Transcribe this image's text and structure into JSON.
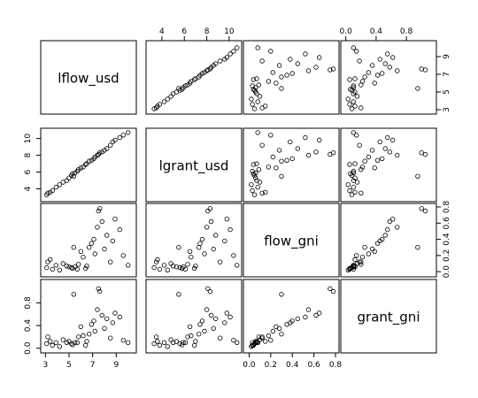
{
  "chart_data": {
    "type": "scatter",
    "variables": [
      {
        "name": "lflow_usd",
        "range": [
          2.9,
          10.4
        ],
        "ticks": [
          3,
          5,
          7,
          9
        ]
      },
      {
        "name": "lgrant_usd",
        "range": [
          2.9,
          10.8
        ],
        "ticks": [
          4,
          6,
          8,
          10
        ]
      },
      {
        "name": "flow_gni",
        "range": [
          -0.02,
          0.8
        ],
        "ticks": [
          0.0,
          0.2,
          0.4,
          0.6,
          0.8
        ]
      },
      {
        "name": "grant_gni",
        "range": [
          -0.02,
          1.15
        ],
        "ticks": [
          0.0,
          0.4,
          0.8
        ]
      }
    ],
    "tick_labels": {
      "top_lgrant_usd": [
        "4",
        "6",
        "8",
        "10"
      ],
      "top_grant_gni": [
        "0.0",
        "0.4",
        "0.8"
      ],
      "right_lflow_usd": [
        "3",
        "5",
        "7",
        "9"
      ],
      "right_flow_gni": [
        "0.0",
        "0.2",
        "0.4",
        "0.6",
        "0.8"
      ],
      "bottom_lflow_usd": [
        "3",
        "5",
        "7",
        "9"
      ],
      "bottom_flow_gni": [
        "0.0",
        "0.2",
        "0.4",
        "0.6",
        "0.8"
      ],
      "left_lgrant_usd": [
        "4",
        "6",
        "8",
        "10"
      ],
      "left_grant_gni": [
        "0.0",
        "0.4",
        "0.8"
      ]
    },
    "observations": [
      [
        3.1,
        3.3,
        0.05,
        0.08
      ],
      [
        3.2,
        3.5,
        0.12,
        0.2
      ],
      [
        3.4,
        3.6,
        0.15,
        0.12
      ],
      [
        3.6,
        3.8,
        0.03,
        0.05
      ],
      [
        3.9,
        4.2,
        0.08,
        0.1
      ],
      [
        4.2,
        4.5,
        0.02,
        0.03
      ],
      [
        4.5,
        4.8,
        0.1,
        0.15
      ],
      [
        4.8,
        5.0,
        0.07,
        0.1
      ],
      [
        5.0,
        5.3,
        0.06,
        0.12
      ],
      [
        5.2,
        5.6,
        0.05,
        0.08
      ],
      [
        5.3,
        5.8,
        0.04,
        0.06
      ],
      [
        5.4,
        5.5,
        0.3,
        0.95
      ],
      [
        5.5,
        5.9,
        0.06,
        0.1
      ],
      [
        5.7,
        6.1,
        0.03,
        0.1
      ],
      [
        5.8,
        6.3,
        0.09,
        0.2
      ],
      [
        6.0,
        6.5,
        0.25,
        0.38
      ],
      [
        6.2,
        6.6,
        0.18,
        0.22
      ],
      [
        6.4,
        6.9,
        0.04,
        0.05
      ],
      [
        6.5,
        7.0,
        0.07,
        0.12
      ],
      [
        6.7,
        7.3,
        0.3,
        0.25
      ],
      [
        6.9,
        7.4,
        0.35,
        0.42
      ],
      [
        7.1,
        7.6,
        0.4,
        0.48
      ],
      [
        7.2,
        7.8,
        0.22,
        0.3
      ],
      [
        7.4,
        8.0,
        0.55,
        0.68
      ],
      [
        7.5,
        8.1,
        0.75,
        1.05
      ],
      [
        7.6,
        8.3,
        0.78,
        1.0
      ],
      [
        7.8,
        8.4,
        0.62,
        0.58
      ],
      [
        8.0,
        8.6,
        0.28,
        0.35
      ],
      [
        8.2,
        8.8,
        0.45,
        0.52
      ],
      [
        8.5,
        9.2,
        0.12,
        0.18
      ],
      [
        8.7,
        9.6,
        0.38,
        0.45
      ],
      [
        8.9,
        9.8,
        0.65,
        0.62
      ],
      [
        9.3,
        10.1,
        0.52,
        0.55
      ],
      [
        9.6,
        10.4,
        0.2,
        0.14
      ],
      [
        10.0,
        10.7,
        0.08,
        0.1
      ]
    ]
  }
}
